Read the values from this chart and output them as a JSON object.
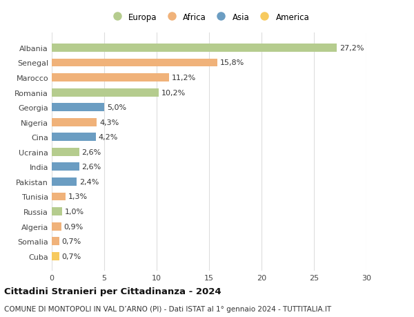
{
  "countries": [
    "Albania",
    "Senegal",
    "Marocco",
    "Romania",
    "Georgia",
    "Nigeria",
    "Cina",
    "Ucraina",
    "India",
    "Pakistan",
    "Tunisia",
    "Russia",
    "Algeria",
    "Somalia",
    "Cuba"
  ],
  "values": [
    27.2,
    15.8,
    11.2,
    10.2,
    5.0,
    4.3,
    4.2,
    2.6,
    2.6,
    2.4,
    1.3,
    1.0,
    0.9,
    0.7,
    0.7
  ],
  "labels": [
    "27,2%",
    "15,8%",
    "11,2%",
    "10,2%",
    "5,0%",
    "4,3%",
    "4,2%",
    "2,6%",
    "2,6%",
    "2,4%",
    "1,3%",
    "1,0%",
    "0,9%",
    "0,7%",
    "0,7%"
  ],
  "continents": [
    "Europa",
    "Africa",
    "Africa",
    "Europa",
    "Asia",
    "Africa",
    "Asia",
    "Europa",
    "Asia",
    "Asia",
    "Africa",
    "Europa",
    "Africa",
    "Africa",
    "America"
  ],
  "continent_colors": {
    "Europa": "#b5cc8e",
    "Africa": "#f0b27a",
    "Asia": "#6b9dc2",
    "America": "#f7ca5e"
  },
  "legend_order": [
    "Europa",
    "Africa",
    "Asia",
    "America"
  ],
  "title": "Cittadini Stranieri per Cittadinanza - 2024",
  "subtitle": "COMUNE DI MONTOPOLI IN VAL D’ARNO (PI) - Dati ISTAT al 1° gennaio 2024 - TUTTITALIA.IT",
  "xlim": [
    0,
    30
  ],
  "xticks": [
    0,
    5,
    10,
    15,
    20,
    25,
    30
  ],
  "background_color": "#ffffff",
  "grid_color": "#dddddd",
  "bar_height": 0.55,
  "label_fontsize": 8,
  "tick_fontsize": 8,
  "title_fontsize": 9.5,
  "subtitle_fontsize": 7.5
}
